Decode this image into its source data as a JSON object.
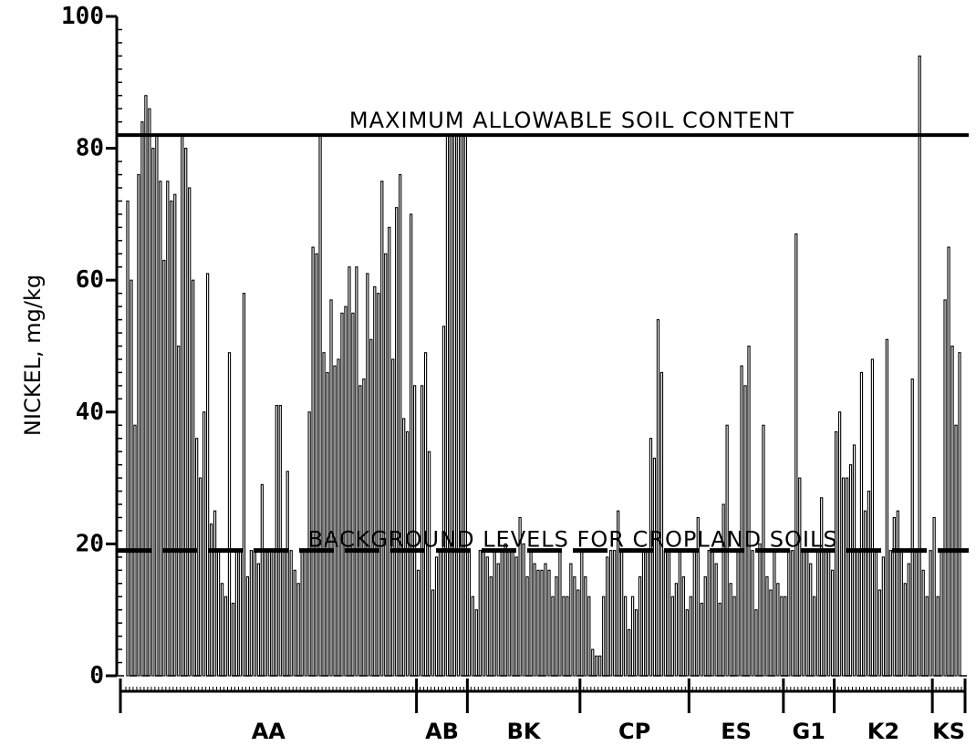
{
  "chart_data": {
    "type": "bar",
    "ylabel": "NICKEL, mg/kg",
    "ylim": [
      0,
      100
    ],
    "yticks": [
      0,
      20,
      40,
      60,
      80,
      100
    ],
    "reference_lines": [
      {
        "label": "MAXIMUM ALLOWABLE SOIL CONTENT",
        "value": 82,
        "style": "solid"
      },
      {
        "label": "BACKGROUND LEVELS FOR CROPLAND SOILS",
        "value": 19,
        "style": "dashed"
      }
    ],
    "groups": [
      {
        "name": "AA",
        "values": [
          72,
          60,
          38,
          76,
          84,
          88,
          86,
          80,
          82,
          75,
          63,
          75,
          72,
          73,
          50,
          82,
          80,
          74,
          60,
          36,
          30,
          40,
          61,
          23,
          25,
          19,
          14,
          12,
          49,
          11,
          19,
          19,
          58,
          15,
          19,
          19,
          17,
          29,
          19,
          19,
          19,
          41,
          41,
          19,
          31,
          19,
          16,
          14,
          19,
          19,
          40,
          65,
          64,
          82,
          49,
          46,
          57,
          47,
          48,
          55,
          56,
          62,
          55,
          62,
          44,
          45,
          61,
          51,
          59,
          58,
          75,
          64,
          68,
          48,
          71,
          76,
          39,
          37,
          70,
          44
        ]
      },
      {
        "name": "AB",
        "values": [
          16,
          44,
          49,
          34,
          13,
          18,
          19,
          53,
          82,
          82,
          82,
          82,
          82,
          82
        ]
      },
      {
        "name": "BK",
        "values": [
          19,
          12,
          10,
          19,
          19,
          18,
          15,
          19,
          17,
          19,
          20,
          19,
          19,
          18,
          24,
          20,
          15,
          19,
          17,
          16,
          16,
          17,
          16,
          12,
          15,
          19,
          12,
          12,
          17,
          15,
          13
        ]
      },
      {
        "name": "CP",
        "values": [
          19,
          15,
          12,
          4,
          3,
          3,
          12,
          18,
          19,
          19,
          25,
          19,
          12,
          7,
          12,
          10,
          15,
          19,
          19,
          36,
          33,
          54,
          46,
          19,
          19,
          12,
          14,
          19,
          15,
          10
        ]
      },
      {
        "name": "ES",
        "values": [
          12,
          19,
          24,
          11,
          15,
          19,
          19,
          17,
          11,
          26,
          38,
          14,
          12,
          19,
          47,
          44,
          50,
          19,
          10,
          20,
          38,
          15,
          13,
          19,
          14,
          12
        ]
      },
      {
        "name": "G1",
        "values": [
          12,
          19,
          19,
          67,
          30,
          19,
          19,
          17,
          12,
          19,
          27,
          19,
          19,
          16
        ]
      },
      {
        "name": "K2",
        "values": [
          37,
          40,
          30,
          30,
          32,
          35,
          19,
          46,
          25,
          28,
          48,
          19,
          13,
          18,
          51,
          19,
          24,
          25,
          19,
          14,
          17,
          45,
          19,
          94,
          16,
          12,
          19
        ]
      },
      {
        "name": "KS",
        "values": [
          24,
          12,
          19,
          57,
          65,
          50,
          38,
          49
        ]
      }
    ]
  }
}
